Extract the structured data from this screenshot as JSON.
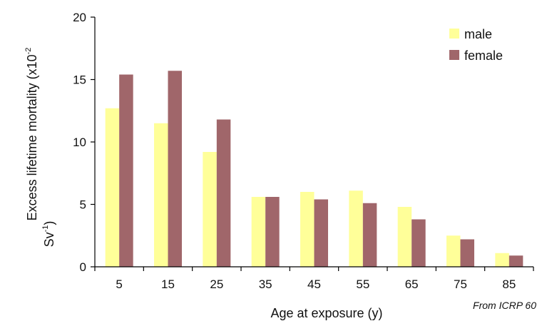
{
  "chart_data": {
    "type": "bar",
    "categories": [
      "5",
      "15",
      "25",
      "35",
      "45",
      "55",
      "65",
      "75",
      "85"
    ],
    "series": [
      {
        "name": "male",
        "color": "#ffff99",
        "values": [
          12.7,
          11.5,
          9.2,
          5.6,
          6.0,
          6.1,
          4.8,
          2.5,
          1.1
        ]
      },
      {
        "name": "female",
        "color": "#a0666a",
        "values": [
          15.4,
          15.7,
          11.8,
          5.6,
          5.4,
          5.1,
          3.8,
          2.2,
          0.9
        ]
      }
    ],
    "xlabel": "Age at exposure (y)",
    "ylabel": {
      "prefix": "Excess lifetime mortality (x10",
      "exp1": "-2",
      "line2": "Sv",
      "exp2": "-1",
      "suffix": ")"
    },
    "ylim": [
      0,
      20
    ],
    "yticks": [
      0,
      5,
      10,
      15,
      20
    ],
    "grid": false,
    "legend": "top-right",
    "source": "From ICRP 60"
  }
}
